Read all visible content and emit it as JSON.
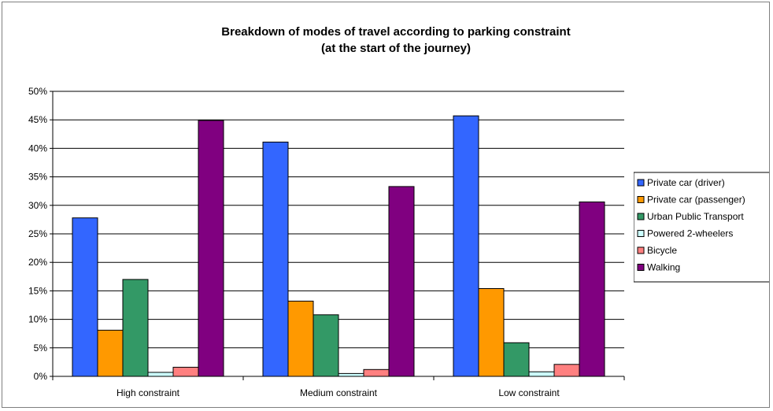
{
  "chart_data": {
    "type": "bar",
    "title": [
      "Breakdown of modes of travel according to parking constraint",
      "(at the start of the journey)"
    ],
    "categories": [
      "High constraint",
      "Medium constraint",
      "Low constraint"
    ],
    "ylim": [
      0,
      50
    ],
    "yticks": [
      "0%",
      "5%",
      "10%",
      "15%",
      "20%",
      "25%",
      "30%",
      "35%",
      "40%",
      "45%",
      "50%"
    ],
    "grid": true,
    "legend_position": "right",
    "series": [
      {
        "name": "Private car (driver)",
        "color": "#3366ff",
        "values": [
          27.8,
          41.1,
          45.7
        ]
      },
      {
        "name": "Private car (passenger)",
        "color": "#ff9900",
        "values": [
          8.1,
          13.2,
          15.4
        ]
      },
      {
        "name": "Urban Public Transport",
        "color": "#339966",
        "values": [
          17.0,
          10.8,
          5.9
        ]
      },
      {
        "name": "Powered 2-wheelers",
        "color": "#ccffff",
        "values": [
          0.7,
          0.5,
          0.8
        ]
      },
      {
        "name": "Bicycle",
        "color": "#ff8080",
        "values": [
          1.6,
          1.2,
          2.1
        ]
      },
      {
        "name": "Walking",
        "color": "#800080",
        "values": [
          44.9,
          33.3,
          30.6
        ]
      }
    ]
  }
}
